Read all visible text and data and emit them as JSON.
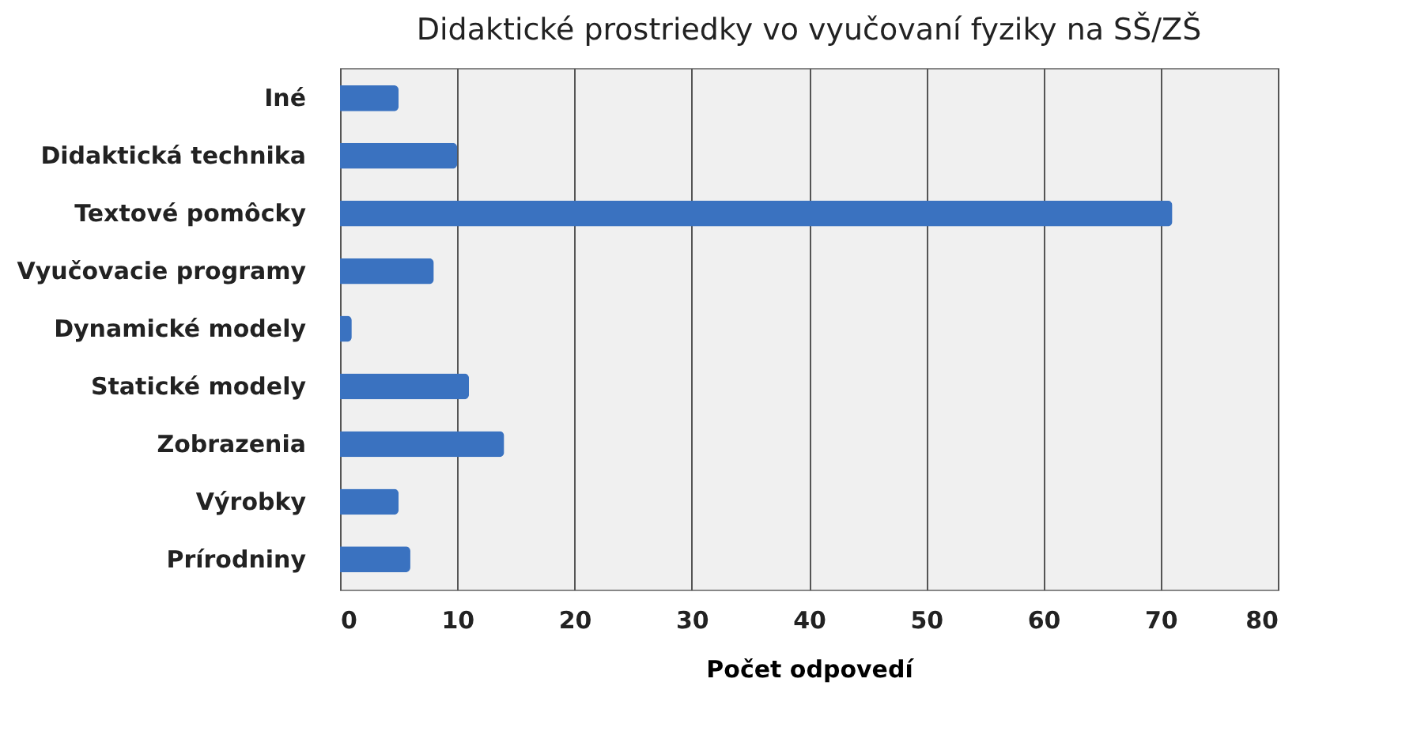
{
  "chart_data": {
    "type": "bar",
    "orientation": "horizontal",
    "title": "Didaktické prostriedky vo vyučovaní fyziky na SŠ/ZŠ",
    "xlabel": "Počet odpovedí",
    "categories": [
      "Iné",
      "Didaktická technika",
      "Textové pomôcky",
      "Vyučovacie programy",
      "Dynamické modely",
      "Statické modely",
      "Zobrazenia",
      "Výrobky",
      "Prírodniny"
    ],
    "values": [
      5,
      10,
      71,
      8,
      1,
      11,
      14,
      5,
      6
    ],
    "color": "#3a72c0",
    "xlim": [
      0,
      80
    ],
    "xticks": [
      0,
      10,
      20,
      30,
      40,
      50,
      60,
      70,
      80
    ],
    "grid": "x"
  }
}
